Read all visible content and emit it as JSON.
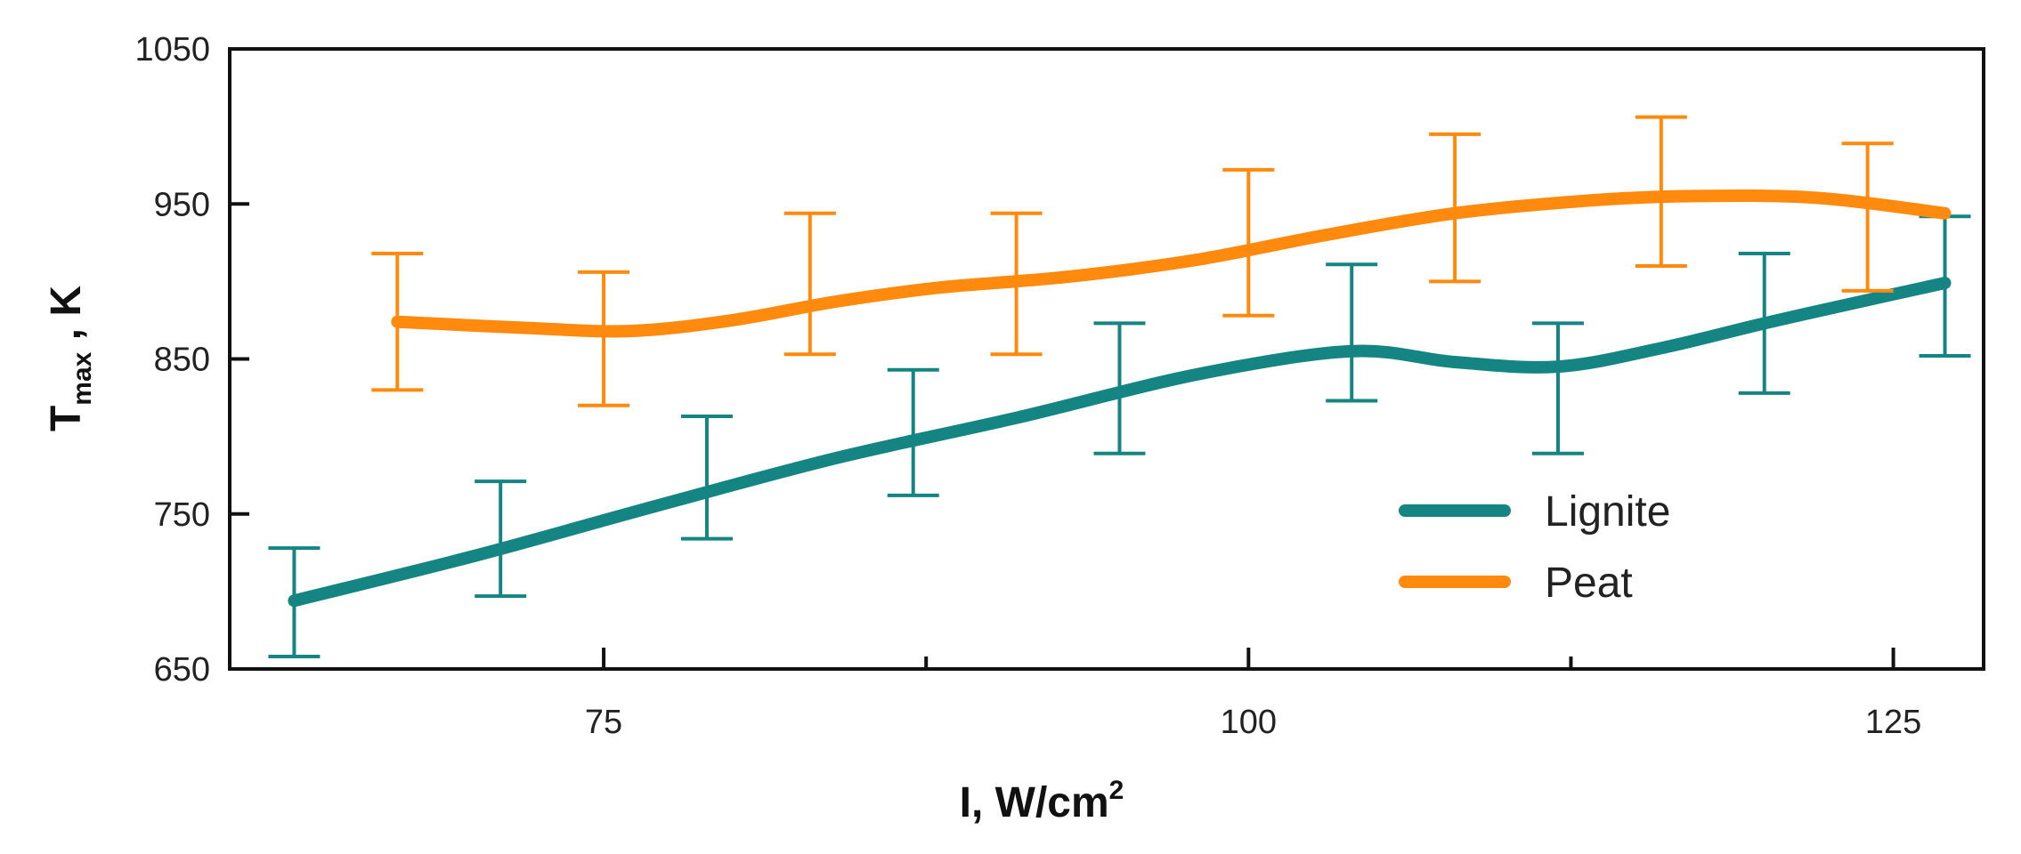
{
  "chart_data": {
    "type": "line",
    "title": "",
    "xlabel": {
      "main": "I, W/cm",
      "sup": "2"
    },
    "ylabel": {
      "main": "T",
      "sub": "max",
      "suffix": " , K"
    },
    "xlim": [
      60.5,
      128.5
    ],
    "ylim": [
      650,
      1050
    ],
    "xticks_major": [
      75,
      100,
      125
    ],
    "xticks_minor": [
      87.5,
      112.5
    ],
    "yticks": [
      650,
      750,
      850,
      950,
      1050
    ],
    "grid": false,
    "legend_position": "bottom-right",
    "series": [
      {
        "name": "Lignite",
        "color": "#158583",
        "points": [
          {
            "x": 63,
            "y": 694
          },
          {
            "x": 70,
            "y": 723
          },
          {
            "x": 77,
            "y": 755
          },
          {
            "x": 84,
            "y": 786
          },
          {
            "x": 91,
            "y": 812
          },
          {
            "x": 98,
            "y": 840
          },
          {
            "x": 104,
            "y": 855
          },
          {
            "x": 108,
            "y": 848
          },
          {
            "x": 112,
            "y": 845
          },
          {
            "x": 116,
            "y": 857
          },
          {
            "x": 120,
            "y": 873
          },
          {
            "x": 124,
            "y": 888
          },
          {
            "x": 127,
            "y": 899
          }
        ],
        "error_bars": [
          {
            "x": 63,
            "low": 658,
            "high": 728
          },
          {
            "x": 71,
            "low": 697,
            "high": 771
          },
          {
            "x": 79,
            "low": 734,
            "high": 813
          },
          {
            "x": 87,
            "low": 762,
            "high": 843
          },
          {
            "x": 95,
            "low": 789,
            "high": 873
          },
          {
            "x": 104,
            "low": 823,
            "high": 911
          },
          {
            "x": 112,
            "low": 789,
            "high": 873
          },
          {
            "x": 120,
            "low": 828,
            "high": 918
          },
          {
            "x": 127,
            "low": 852,
            "high": 942
          }
        ]
      },
      {
        "name": "Peat",
        "color": "#ff8a0e",
        "points": [
          {
            "x": 67,
            "y": 874
          },
          {
            "x": 72,
            "y": 870
          },
          {
            "x": 76,
            "y": 868
          },
          {
            "x": 80,
            "y": 875
          },
          {
            "x": 84,
            "y": 887
          },
          {
            "x": 88,
            "y": 896
          },
          {
            "x": 93,
            "y": 903
          },
          {
            "x": 98,
            "y": 914
          },
          {
            "x": 103,
            "y": 930
          },
          {
            "x": 108,
            "y": 944
          },
          {
            "x": 113,
            "y": 952
          },
          {
            "x": 117,
            "y": 955
          },
          {
            "x": 122,
            "y": 954
          },
          {
            "x": 127,
            "y": 944
          }
        ],
        "error_bars": [
          {
            "x": 67,
            "low": 830,
            "high": 918
          },
          {
            "x": 75,
            "low": 820,
            "high": 906
          },
          {
            "x": 83,
            "low": 853,
            "high": 944
          },
          {
            "x": 91,
            "low": 853,
            "high": 944
          },
          {
            "x": 100,
            "low": 878,
            "high": 972
          },
          {
            "x": 108,
            "low": 900,
            "high": 995
          },
          {
            "x": 116,
            "low": 910,
            "high": 1006
          },
          {
            "x": 124,
            "low": 894,
            "high": 989
          }
        ]
      }
    ]
  }
}
